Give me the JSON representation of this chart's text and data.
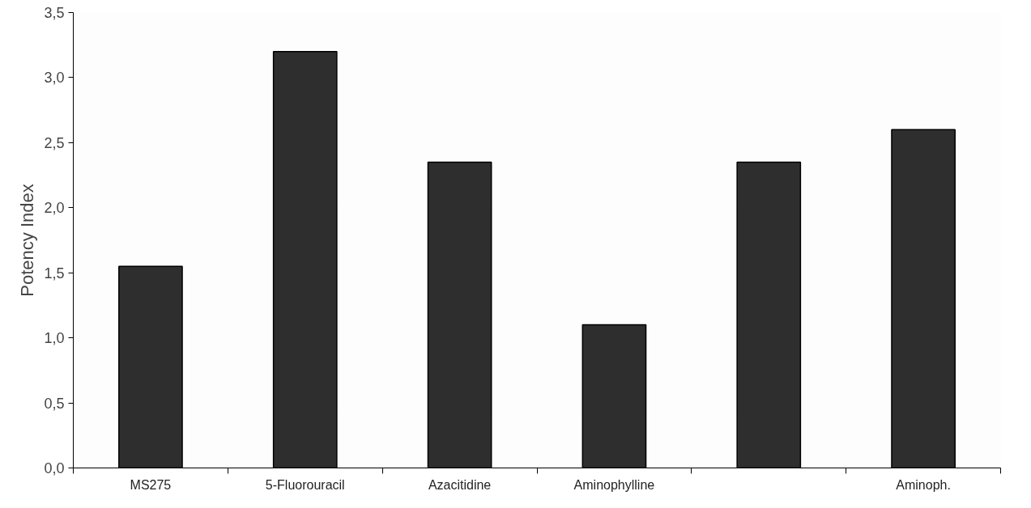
{
  "chart_data": {
    "type": "bar",
    "ylabel": "Potency Index",
    "categories": [
      "MS275",
      "5-Fluorouracil",
      "Azacitidine",
      "Aminophylline",
      null,
      "Aminoph."
    ],
    "values": [
      1.55,
      3.2,
      2.35,
      1.1,
      2.35,
      2.6
    ],
    "color": "#2e2e2e",
    "ylim": [
      0,
      3.5
    ],
    "yticks": [
      {
        "value": 0,
        "label": "0,0"
      },
      {
        "value": 0.5,
        "label": "0,5"
      },
      {
        "value": 1,
        "label": "1,0"
      },
      {
        "value": 1.5,
        "label": "1,5"
      },
      {
        "value": 2,
        "label": "2,0"
      },
      {
        "value": 2.5,
        "label": "2,5"
      },
      {
        "value": 3,
        "label": "3,0"
      },
      {
        "value": 3.5,
        "label": "3,5"
      }
    ],
    "grid": false
  }
}
